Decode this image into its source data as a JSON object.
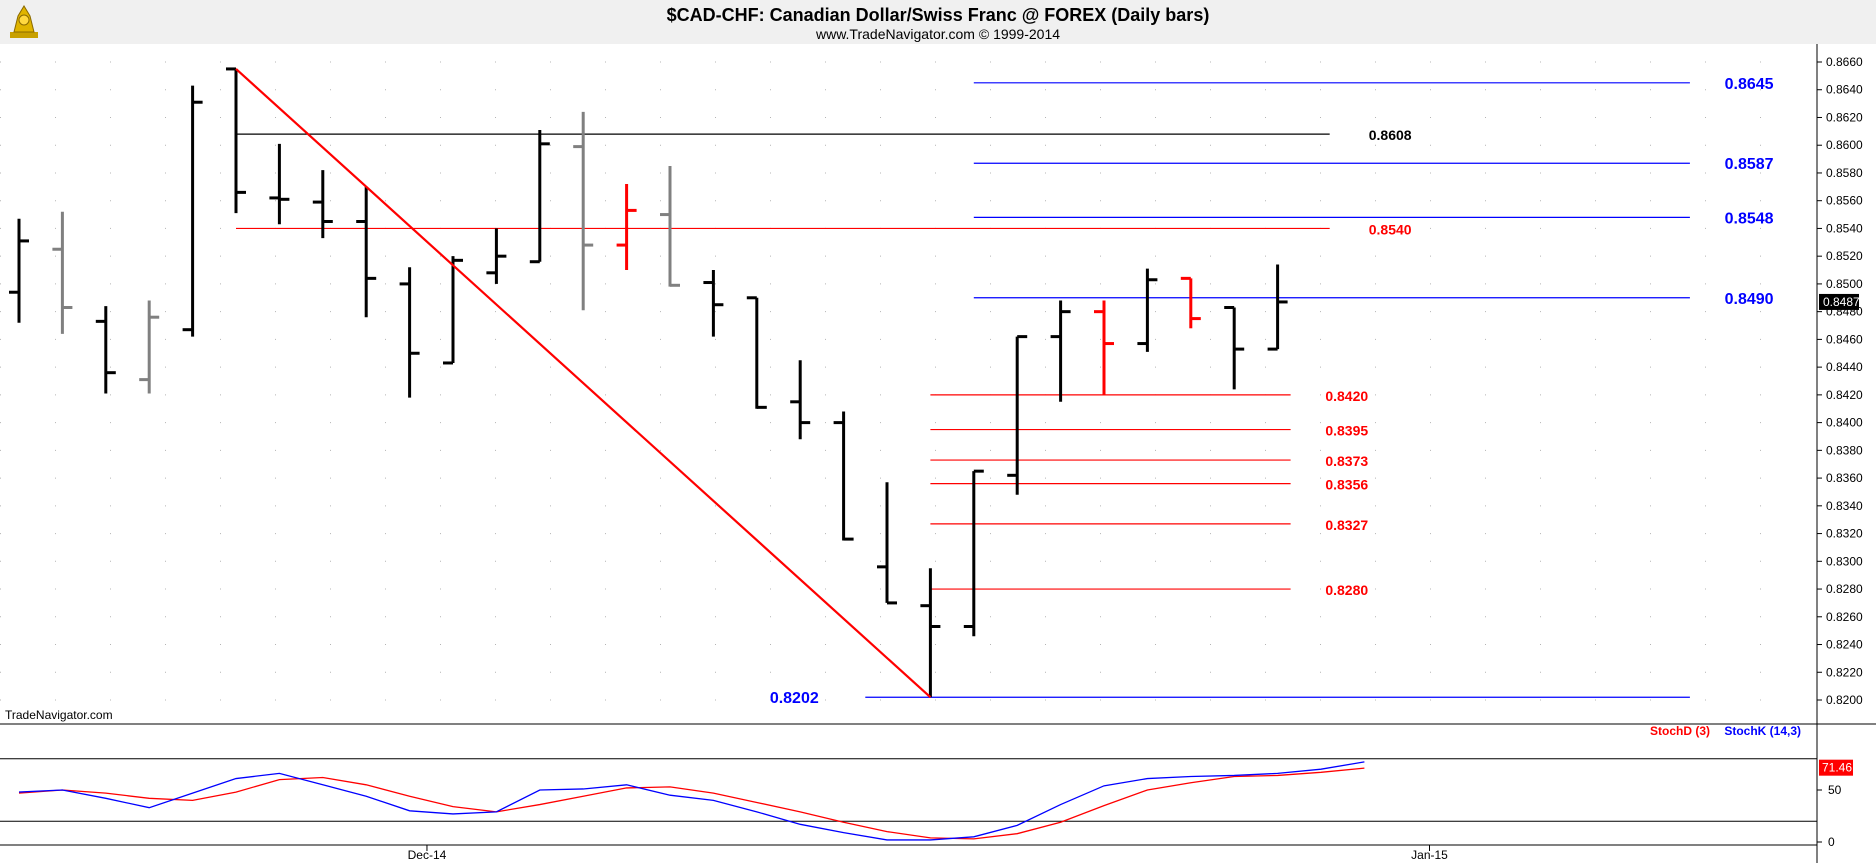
{
  "header": {
    "title": "$CAD-CHF:  Canadian Dollar/Swiss Franc @ FOREX  (Daily bars)",
    "subtitle": "www.TradeNavigator.com © 1999-2014"
  },
  "watermark": "TradeNavigator.com",
  "colors": {
    "bar_black": "#000000",
    "bar_gray": "#808080",
    "bar_red": "#ff0000",
    "blue": "#0000ff",
    "red": "#ff0000",
    "black": "#000000",
    "grid_dot": "#b4b4b4",
    "panel_bg": "#f0f0f0"
  },
  "chart_data": [
    {
      "type": "ohlc",
      "title": "$CAD-CHF:  Canadian Dollar/Swiss Franc @ FOREX  (Daily bars)",
      "ylim": [
        0.8188,
        0.867
      ],
      "y_ticks": [
        "0.8660",
        "0.8640",
        "0.8620",
        "0.8600",
        "0.8580",
        "0.8560",
        "0.8540",
        "0.8520",
        "0.8500",
        "0.8480",
        "0.8460",
        "0.8440",
        "0.8420",
        "0.8400",
        "0.8380",
        "0.8360",
        "0.8340",
        "0.8320",
        "0.8300",
        "0.8280",
        "0.8260",
        "0.8240",
        "0.8220",
        "0.8200"
      ],
      "x_labels": [
        {
          "label": "Dec-14",
          "bar": 9.4
        },
        {
          "label": "Jan-15",
          "bar": 32.5
        }
      ],
      "last_price": "0.8487",
      "bars": [
        {
          "o": 0.8494,
          "h": 0.8547,
          "l": 0.8472,
          "c": 0.8531,
          "color": "black"
        },
        {
          "o": 0.8525,
          "h": 0.8552,
          "l": 0.8464,
          "c": 0.8483,
          "color": "gray"
        },
        {
          "o": 0.8473,
          "h": 0.8484,
          "l": 0.8421,
          "c": 0.8436,
          "color": "black"
        },
        {
          "o": 0.8431,
          "h": 0.8488,
          "l": 0.8421,
          "c": 0.8476,
          "color": "gray"
        },
        {
          "o": 0.8467,
          "h": 0.8643,
          "l": 0.8462,
          "c": 0.8631,
          "color": "black"
        },
        {
          "o": 0.8655,
          "h": 0.8655,
          "l": 0.8551,
          "c": 0.8566,
          "color": "black"
        },
        {
          "o": 0.8562,
          "h": 0.8601,
          "l": 0.8543,
          "c": 0.8561,
          "color": "black"
        },
        {
          "o": 0.8559,
          "h": 0.8582,
          "l": 0.8533,
          "c": 0.8545,
          "color": "black"
        },
        {
          "o": 0.8545,
          "h": 0.857,
          "l": 0.8476,
          "c": 0.8504,
          "color": "black"
        },
        {
          "o": 0.85,
          "h": 0.8512,
          "l": 0.8418,
          "c": 0.845,
          "color": "black"
        },
        {
          "o": 0.8443,
          "h": 0.852,
          "l": 0.8443,
          "c": 0.8517,
          "color": "black"
        },
        {
          "o": 0.8508,
          "h": 0.854,
          "l": 0.85,
          "c": 0.852,
          "color": "black"
        },
        {
          "o": 0.8516,
          "h": 0.8611,
          "l": 0.8516,
          "c": 0.8601,
          "color": "black"
        },
        {
          "o": 0.8599,
          "h": 0.8624,
          "l": 0.8481,
          "c": 0.8528,
          "color": "gray"
        },
        {
          "o": 0.8528,
          "h": 0.8572,
          "l": 0.851,
          "c": 0.8553,
          "color": "red"
        },
        {
          "o": 0.855,
          "h": 0.8585,
          "l": 0.8498,
          "c": 0.8499,
          "color": "gray"
        },
        {
          "o": 0.8501,
          "h": 0.851,
          "l": 0.8462,
          "c": 0.8485,
          "color": "black"
        },
        {
          "o": 0.849,
          "h": 0.849,
          "l": 0.841,
          "c": 0.8411,
          "color": "black"
        },
        {
          "o": 0.8415,
          "h": 0.8445,
          "l": 0.8388,
          "c": 0.84,
          "color": "black"
        },
        {
          "o": 0.84,
          "h": 0.8408,
          "l": 0.8315,
          "c": 0.8316,
          "color": "black"
        },
        {
          "o": 0.8296,
          "h": 0.8357,
          "l": 0.827,
          "c": 0.827,
          "color": "black"
        },
        {
          "o": 0.8268,
          "h": 0.8295,
          "l": 0.8202,
          "c": 0.8253,
          "color": "black"
        },
        {
          "o": 0.8253,
          "h": 0.8365,
          "l": 0.8246,
          "c": 0.8365,
          "color": "black"
        },
        {
          "o": 0.8362,
          "h": 0.8462,
          "l": 0.8348,
          "c": 0.8462,
          "color": "black"
        },
        {
          "o": 0.8462,
          "h": 0.8488,
          "l": 0.8415,
          "c": 0.848,
          "color": "black"
        },
        {
          "o": 0.848,
          "h": 0.8488,
          "l": 0.842,
          "c": 0.8457,
          "color": "red"
        },
        {
          "o": 0.8457,
          "h": 0.8511,
          "l": 0.8451,
          "c": 0.8503,
          "color": "black"
        },
        {
          "o": 0.8504,
          "h": 0.8504,
          "l": 0.8468,
          "c": 0.8475,
          "color": "red"
        },
        {
          "o": 0.8483,
          "h": 0.8483,
          "l": 0.8424,
          "c": 0.8453,
          "color": "black"
        },
        {
          "o": 0.8453,
          "h": 0.8514,
          "l": 0.8453,
          "c": 0.8487,
          "color": "black"
        }
      ],
      "trendline": {
        "from": {
          "bar": 5,
          "price": 0.8655
        },
        "to": {
          "bar": 21,
          "price": 0.8202
        },
        "color": "red"
      },
      "levels": [
        {
          "price": 0.8608,
          "label": "0.8608",
          "color": "black",
          "from_bar": 5,
          "to_bar": 30.2,
          "label_bar": 31.1,
          "size": 14
        },
        {
          "price": 0.854,
          "label": "0.8540",
          "color": "red",
          "from_bar": 5,
          "to_bar": 30.2,
          "label_bar": 31.1,
          "size": 14
        },
        {
          "price": 0.8645,
          "label": "0.8645",
          "color": "blue",
          "from_bar": 22,
          "to_bar": 38.5,
          "label_bar": 39.3,
          "size": 16
        },
        {
          "price": 0.8587,
          "label": "0.8587",
          "color": "blue",
          "from_bar": 22,
          "to_bar": 38.5,
          "label_bar": 39.3,
          "size": 16
        },
        {
          "price": 0.8548,
          "label": "0.8548",
          "color": "blue",
          "from_bar": 22,
          "to_bar": 38.5,
          "label_bar": 39.3,
          "size": 16
        },
        {
          "price": 0.849,
          "label": "0.8490",
          "color": "blue",
          "from_bar": 22,
          "to_bar": 38.5,
          "label_bar": 39.3,
          "size": 16
        },
        {
          "price": 0.842,
          "label": "0.8420",
          "color": "red",
          "from_bar": 21,
          "to_bar": 29.3,
          "label_bar": 30.1,
          "size": 14
        },
        {
          "price": 0.8395,
          "label": "0.8395",
          "color": "red",
          "from_bar": 21,
          "to_bar": 29.3,
          "label_bar": 30.1,
          "size": 14
        },
        {
          "price": 0.8373,
          "label": "0.8373",
          "color": "red",
          "from_bar": 21,
          "to_bar": 29.3,
          "label_bar": 30.1,
          "size": 14
        },
        {
          "price": 0.8356,
          "label": "0.8356",
          "color": "red",
          "from_bar": 21,
          "to_bar": 29.3,
          "label_bar": 30.1,
          "size": 14
        },
        {
          "price": 0.8327,
          "label": "0.8327",
          "color": "red",
          "from_bar": 21,
          "to_bar": 29.3,
          "label_bar": 30.1,
          "size": 14
        },
        {
          "price": 0.828,
          "label": "0.8280",
          "color": "red",
          "from_bar": 21,
          "to_bar": 29.3,
          "label_bar": 30.1,
          "size": 14
        },
        {
          "price": 0.8202,
          "label": "0.8202",
          "color": "blue",
          "from_bar": 19.5,
          "to_bar": 38.5,
          "label_bar": 17.3,
          "size": 16
        }
      ]
    },
    {
      "type": "line",
      "legend": [
        {
          "name": "StochD (3)",
          "color": "#ff0000"
        },
        {
          "name": "StochK (14,3)",
          "color": "#0000ff"
        }
      ],
      "ylim": [
        0,
        100
      ],
      "y_ticks": [
        "50",
        "0"
      ],
      "guides": [
        80,
        20
      ],
      "last_values": {
        "stochD": "71.46"
      },
      "series": [
        {
          "name": "StochK (14,3)",
          "color": "#0000ff",
          "values": [
            48,
            50,
            42,
            33,
            47,
            61,
            66,
            55,
            44,
            30,
            27,
            29,
            50,
            51,
            55,
            45,
            40,
            29,
            17,
            9,
            2,
            2,
            5,
            16,
            36,
            54,
            61,
            63,
            64,
            66,
            70,
            77
          ]
        },
        {
          "name": "StochD (3)",
          "color": "#ff0000",
          "values": [
            47,
            50,
            47,
            42,
            40,
            48,
            60,
            62,
            55,
            44,
            34,
            29,
            36,
            44,
            52,
            53,
            47,
            38,
            29,
            19,
            10,
            4,
            3,
            8,
            19,
            35,
            50,
            57,
            63,
            64,
            67,
            71
          ]
        }
      ]
    }
  ]
}
